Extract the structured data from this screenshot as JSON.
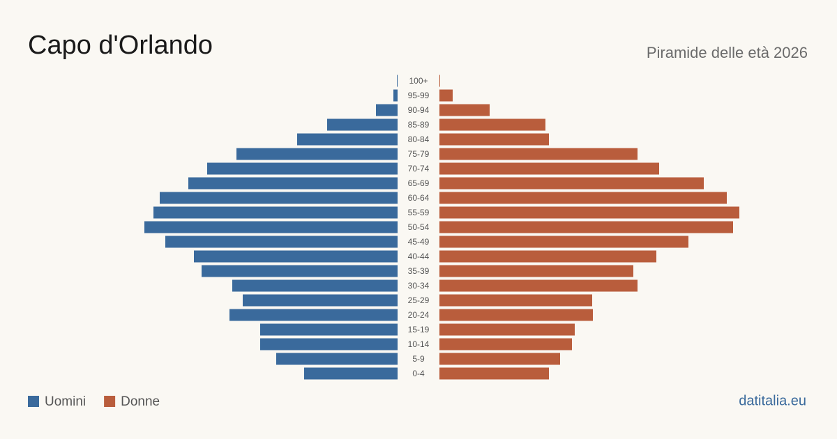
{
  "chart_data": {
    "type": "pyramid",
    "title": "Capo d'Orlando",
    "subtitle": "Piramide delle età 2026",
    "source": "datitalia.eu",
    "categories": [
      "100+",
      "95-99",
      "90-94",
      "85-89",
      "80-84",
      "75-79",
      "70-74",
      "65-69",
      "60-64",
      "55-59",
      "50-54",
      "45-49",
      "40-44",
      "35-39",
      "30-34",
      "25-29",
      "20-24",
      "15-19",
      "10-14",
      "5-9",
      "0-4"
    ],
    "series": [
      {
        "name": "Uomini",
        "color": "#3a6a9c",
        "values": [
          1,
          6,
          31,
          101,
          144,
          231,
          273,
          300,
          341,
          350,
          363,
          333,
          292,
          281,
          237,
          222,
          241,
          197,
          197,
          174,
          134
        ]
      },
      {
        "name": "Donne",
        "color": "#b95d3c",
        "values": [
          1,
          19,
          72,
          152,
          157,
          284,
          315,
          379,
          412,
          430,
          421,
          357,
          311,
          278,
          284,
          219,
          220,
          194,
          190,
          173,
          157
        ]
      }
    ]
  }
}
